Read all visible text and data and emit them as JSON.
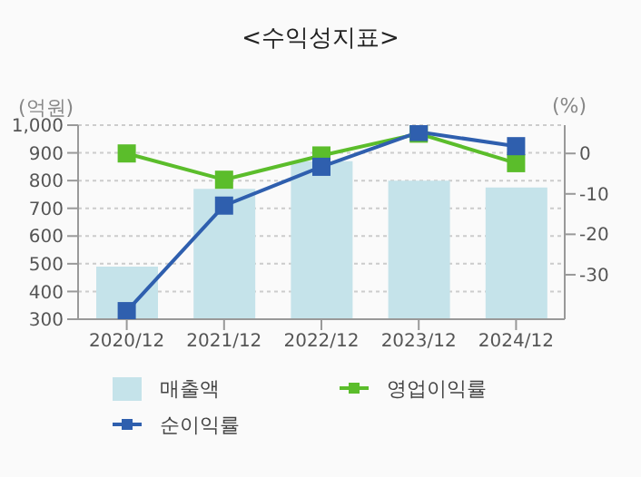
{
  "chart_data": {
    "type": "bar",
    "title": "<수익성지표>",
    "ylabel": "(억원)",
    "y2label": "(%)",
    "categories": [
      "2020/12",
      "2021/12",
      "2022/12",
      "2023/12",
      "2024/12"
    ],
    "series": [
      {
        "name": "매출액",
        "color": "#c5e3ea",
        "values": [
          490,
          770,
          870,
          800,
          775
        ]
      },
      {
        "name": "영업이익률",
        "type": "line",
        "axis": "y2",
        "color": "#5bbd2b",
        "values": [
          0,
          -6.5,
          -0.5,
          4.9,
          -2.4
        ]
      },
      {
        "name": "순이익률",
        "type": "line",
        "axis": "y2",
        "color": "#2f5fae",
        "values": [
          -39,
          -12.9,
          -3.3,
          5.3,
          1.8
        ]
      }
    ],
    "ylim": [
      300,
      1000
    ],
    "yticks": [
      300,
      400,
      500,
      600,
      700,
      800,
      900,
      {
        "value": 1000,
        "label": "1,000"
      }
    ],
    "y2lim": [
      -41,
      7
    ],
    "y2ticks": [
      -30,
      -20,
      -10,
      0
    ],
    "grid": "y",
    "legend": "bottom",
    "marker": "square",
    "line_style": "solid"
  }
}
